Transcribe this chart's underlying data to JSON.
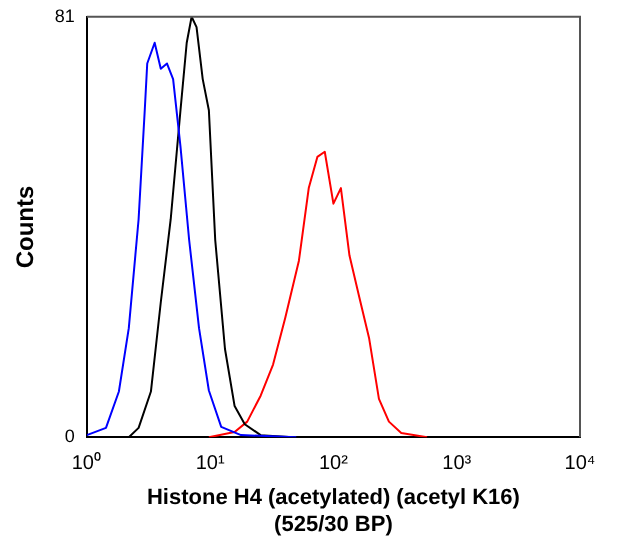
{
  "chart_data": {
    "type": "line",
    "xlabel": "Histone H4 (acetylated) (acetyl K16)\n(525/30 BP)",
    "ylabel": "Counts",
    "log": "x",
    "xlim": [
      1,
      10000
    ],
    "ylim": [
      0,
      81
    ],
    "xticks": [
      {
        "value": 1,
        "label": "10⁰"
      },
      {
        "value": 10,
        "label": "10¹"
      },
      {
        "value": 100,
        "label": "10²"
      },
      {
        "value": 1000,
        "label": "10³"
      },
      {
        "value": 10000,
        "label": "10⁴"
      }
    ],
    "yticks": [
      0,
      81
    ],
    "grid": false,
    "legend": false,
    "marker": "none",
    "line_style": "solid",
    "series": [
      {
        "color": "#0000ff",
        "x": [
          1,
          1.43,
          1.82,
          2.19,
          2.63,
          2.95,
          3.09,
          3.55,
          3.98,
          4.47,
          5.01,
          5.75,
          6.76,
          8.13,
          9.77,
          12.3,
          17.8,
          50
        ],
        "values": [
          0.4,
          1.8,
          8.8,
          21,
          42,
          63,
          72,
          76,
          71,
          72,
          69,
          56,
          38,
          21,
          9,
          2,
          0.4,
          0
        ]
      },
      {
        "color": "#000000",
        "x": [
          2.19,
          2.63,
          3.31,
          3.98,
          4.79,
          5.75,
          6.46,
          7.08,
          7.76,
          8.71,
          9.77,
          11,
          13.2,
          15.8,
          19.1,
          25.7,
          46.8
        ],
        "values": [
          0,
          1.8,
          8.8,
          26,
          42,
          63,
          76,
          81,
          79,
          69,
          63,
          38,
          17,
          6,
          2.5,
          0.4,
          0
        ]
      },
      {
        "color": "#ff0000",
        "x": [
          9.77,
          15.8,
          20,
          25.7,
          32.4,
          40.7,
          52.5,
          63.1,
          74.1,
          85.1,
          100,
          115,
          135,
          162,
          195,
          234,
          282,
          355,
          575
        ],
        "values": [
          0,
          1,
          3,
          8,
          14,
          23,
          34,
          48,
          54,
          55,
          45,
          48,
          35,
          27,
          19,
          7.4,
          3,
          0.8,
          0
        ]
      }
    ]
  }
}
